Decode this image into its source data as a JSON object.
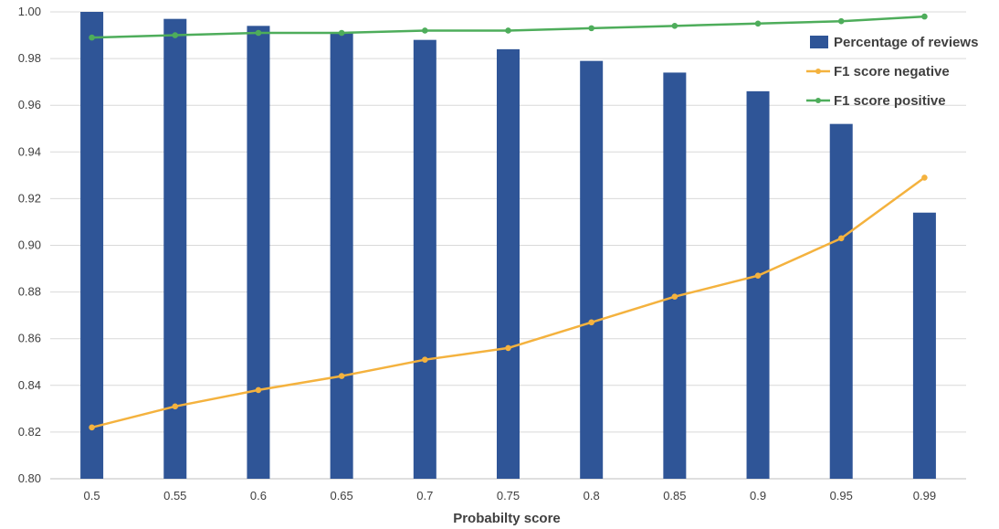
{
  "chart_data": {
    "type": "bar",
    "xlabel": "Probabilty score",
    "ylabel": "",
    "ylim": [
      0.8,
      1.0
    ],
    "yticks": [
      "0.80",
      "0.82",
      "0.84",
      "0.86",
      "0.88",
      "0.90",
      "0.92",
      "0.94",
      "0.96",
      "0.98",
      "1.00"
    ],
    "categories": [
      "0.5",
      "0.55",
      "0.6",
      "0.65",
      "0.7",
      "0.75",
      "0.8",
      "0.85",
      "0.9",
      "0.95",
      "0.99"
    ],
    "grid": "horizontal",
    "legend_position": "top-right",
    "series": [
      {
        "name": "Percentage of reviews",
        "kind": "bar",
        "color": "#2F5597",
        "values": [
          1.0,
          0.997,
          0.994,
          0.991,
          0.988,
          0.984,
          0.979,
          0.974,
          0.966,
          0.952,
          0.914
        ]
      },
      {
        "name": "F1 score negative",
        "kind": "line",
        "color": "#F4B23E",
        "values": [
          0.822,
          0.831,
          0.838,
          0.844,
          0.851,
          0.856,
          0.867,
          0.878,
          0.887,
          0.903,
          0.929
        ]
      },
      {
        "name": "F1 score positive",
        "kind": "line",
        "color": "#4EAD5B",
        "values": [
          0.989,
          0.99,
          0.991,
          0.991,
          0.992,
          0.992,
          0.993,
          0.994,
          0.995,
          0.996,
          0.998
        ]
      }
    ]
  }
}
